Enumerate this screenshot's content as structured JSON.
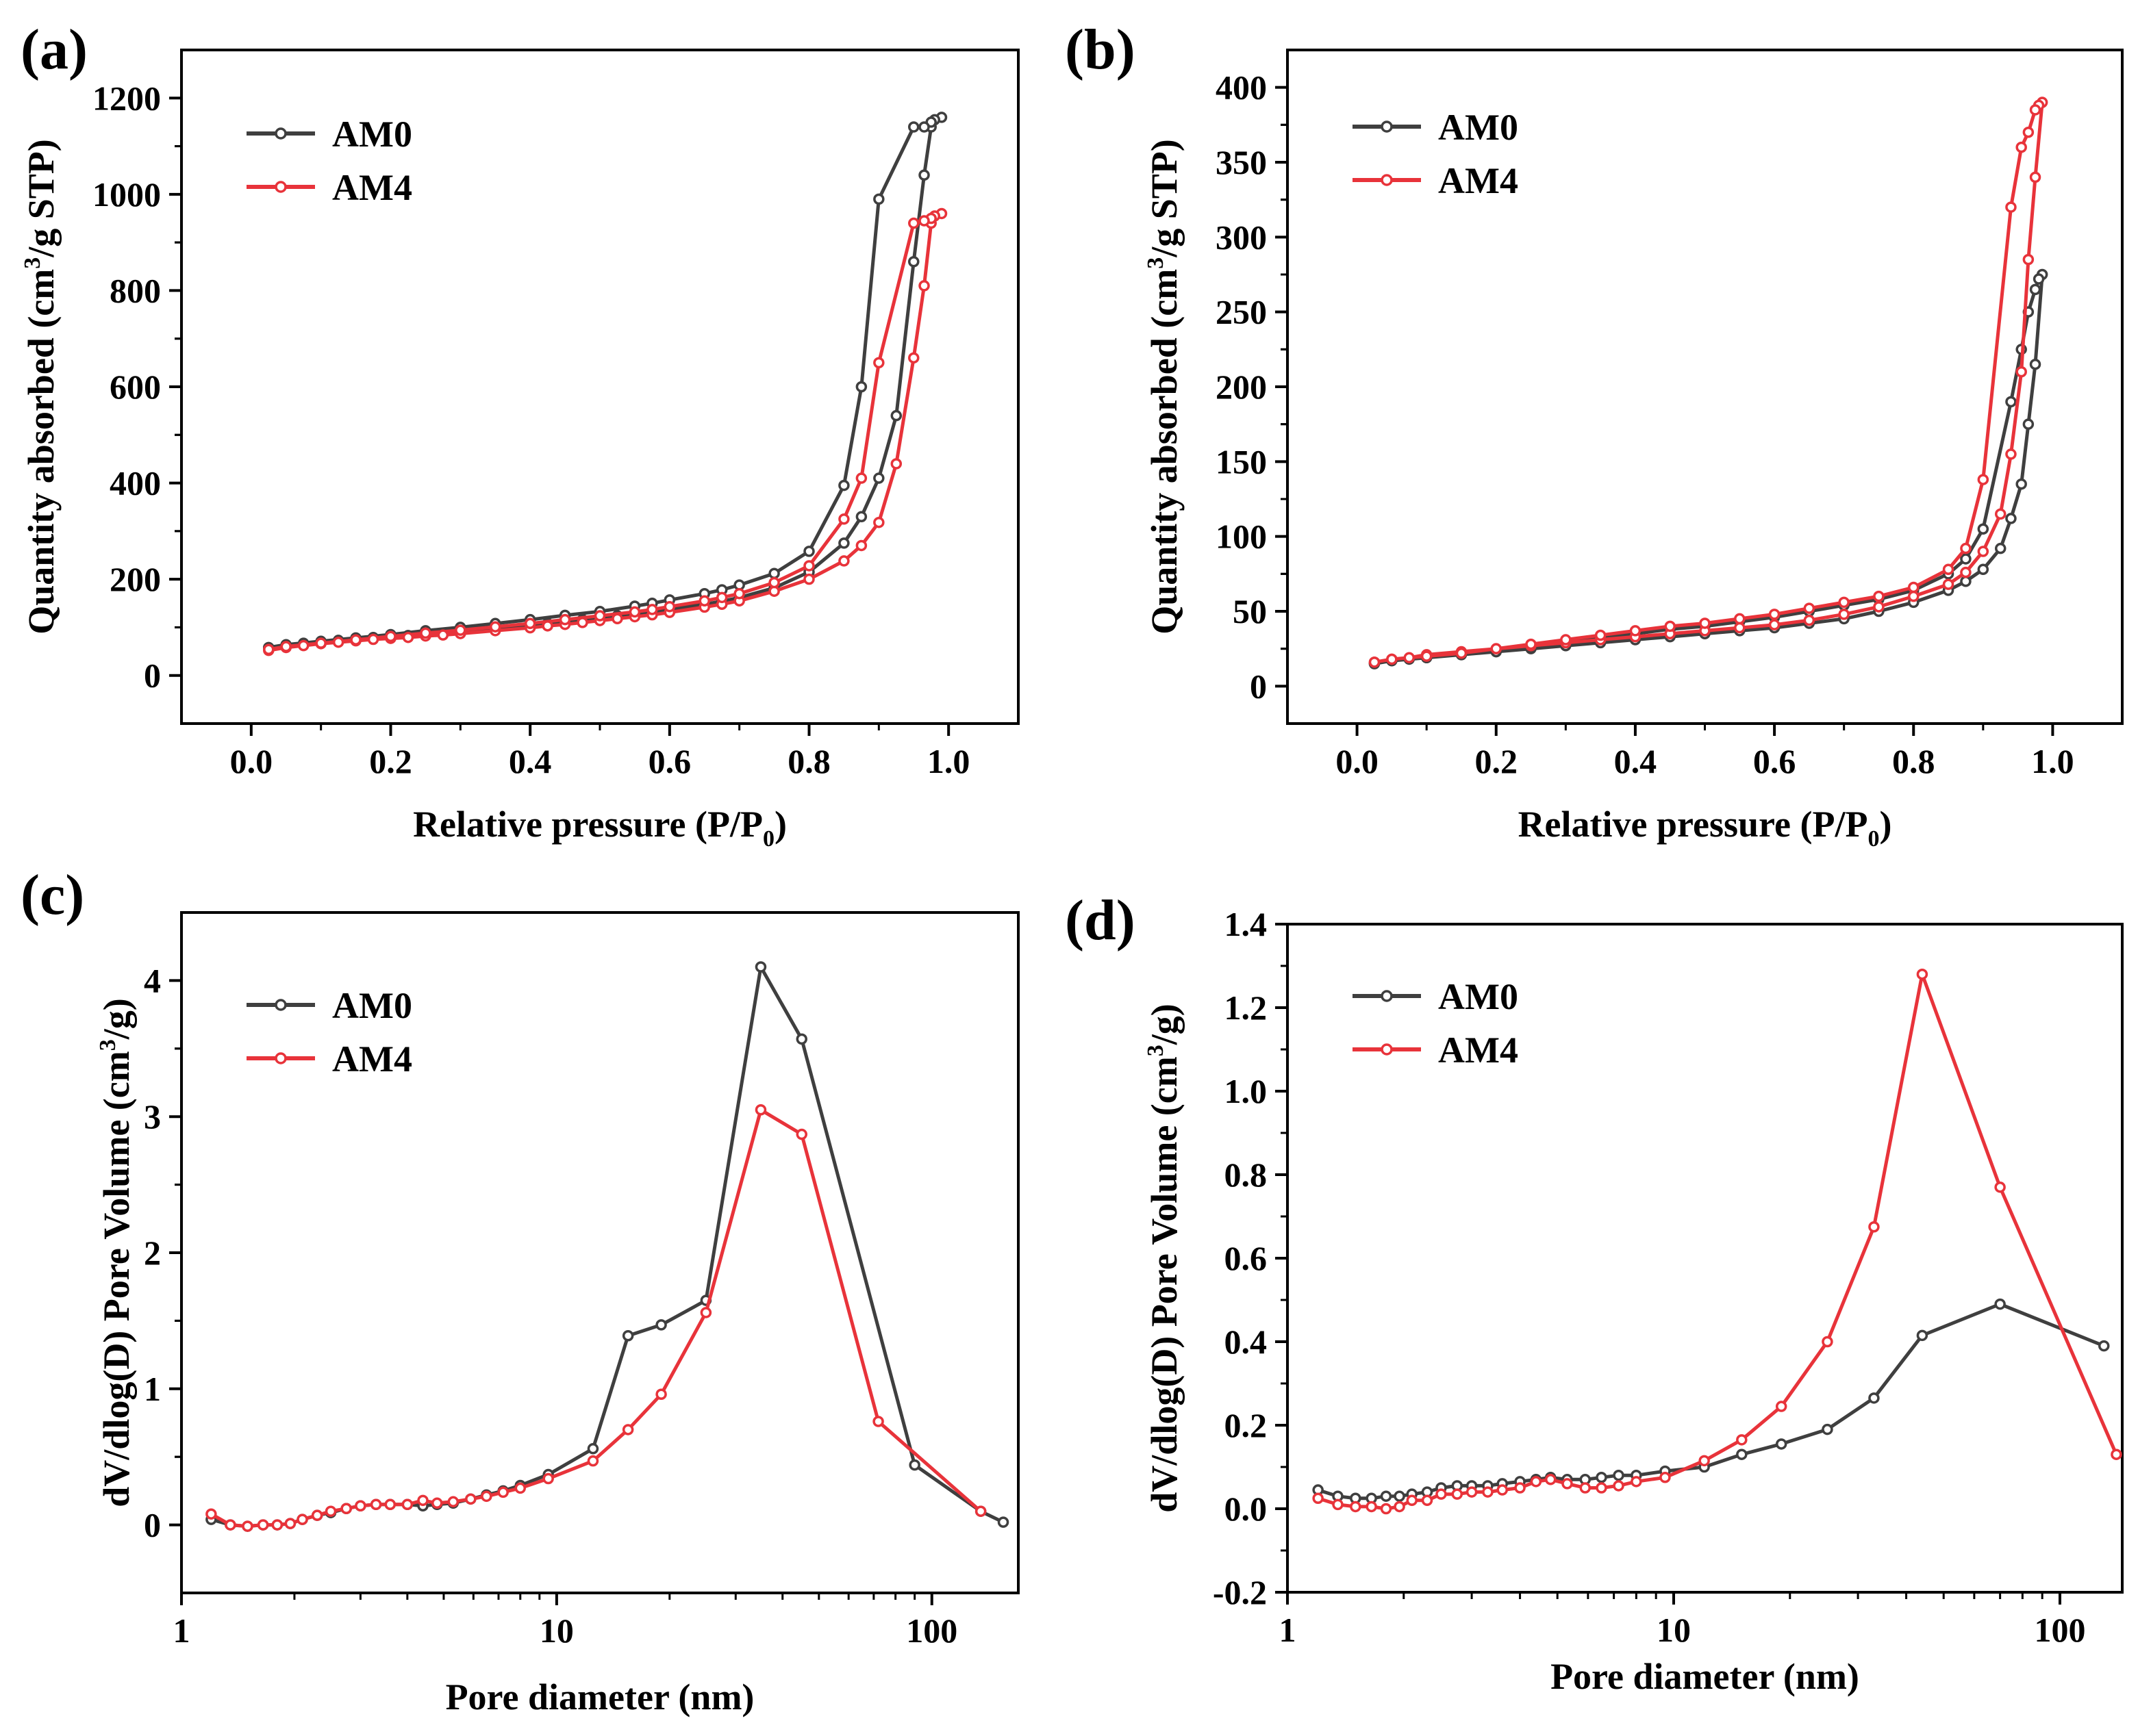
{
  "chart_data": [
    {
      "panel": "(a)",
      "type": "line",
      "xlabel": "Relative pressure (P/P0)",
      "xlabel_main": "Relative pressure (P/P",
      "xlabel_sub": "0",
      "xlabel_end": ")",
      "ylabel": "Quantity absorbed (cm3/g STP)",
      "ylabel_pre": "Quantity absorbed (cm",
      "ylabel_sup": "3",
      "ylabel_post": "/g STP)",
      "xlim": [
        -0.1,
        1.1
      ],
      "ylim": [
        -100,
        1300
      ],
      "xscale": "linear",
      "xticks": [
        0.0,
        0.2,
        0.4,
        0.6,
        0.8,
        1.0
      ],
      "xtick_labels": [
        "0.0",
        "0.2",
        "0.4",
        "0.6",
        "0.8",
        "1.0"
      ],
      "yticks": [
        0,
        200,
        400,
        600,
        800,
        1000,
        1200
      ],
      "ytick_labels": [
        "0",
        "200",
        "400",
        "600",
        "800",
        "1000",
        "1200"
      ],
      "legend_position": "top-left",
      "series": [
        {
          "name": "AM0",
          "color": "#3f3f3f",
          "x": [
            0.025,
            0.05,
            0.075,
            0.1,
            0.125,
            0.15,
            0.175,
            0.2,
            0.225,
            0.25,
            0.275,
            0.3,
            0.35,
            0.4,
            0.425,
            0.45,
            0.475,
            0.5,
            0.525,
            0.55,
            0.575,
            0.6,
            0.65,
            0.675,
            0.7,
            0.75,
            0.8,
            0.85,
            0.875,
            0.9,
            0.925,
            0.95,
            0.965,
            0.975,
            0.99,
            0.98,
            0.975,
            0.965,
            0.95,
            0.9,
            0.875,
            0.85,
            0.8,
            0.75,
            0.7,
            0.675,
            0.65,
            0.6,
            0.575,
            0.55,
            0.5,
            0.45,
            0.4,
            0.35,
            0.3,
            0.25,
            0.2,
            0.15,
            0.1,
            0.05,
            0.025
          ],
          "y": [
            58,
            63,
            67,
            70,
            73,
            76,
            79,
            81,
            83,
            86,
            88,
            91,
            97,
            104,
            108,
            112,
            116,
            120,
            124,
            128,
            132,
            137,
            148,
            154,
            162,
            182,
            215,
            275,
            330,
            410,
            540,
            860,
            1040,
            1140,
            1160,
            1155,
            1150,
            1140,
            1140,
            990,
            600,
            395,
            258,
            212,
            188,
            178,
            170,
            157,
            150,
            144,
            133,
            125,
            116,
            108,
            100,
            93,
            85,
            78,
            71,
            64,
            58
          ]
        },
        {
          "name": "AM4",
          "color": "#e8333a",
          "x": [
            0.025,
            0.05,
            0.075,
            0.1,
            0.125,
            0.15,
            0.175,
            0.2,
            0.225,
            0.25,
            0.275,
            0.3,
            0.35,
            0.4,
            0.425,
            0.45,
            0.475,
            0.5,
            0.525,
            0.55,
            0.575,
            0.6,
            0.65,
            0.675,
            0.7,
            0.75,
            0.8,
            0.85,
            0.875,
            0.9,
            0.925,
            0.95,
            0.965,
            0.975,
            0.99,
            0.98,
            0.975,
            0.965,
            0.95,
            0.9,
            0.875,
            0.85,
            0.8,
            0.75,
            0.7,
            0.675,
            0.65,
            0.6,
            0.575,
            0.55,
            0.5,
            0.45,
            0.4,
            0.35,
            0.3,
            0.25,
            0.2,
            0.15,
            0.1,
            0.05,
            0.025
          ],
          "y": [
            52,
            58,
            62,
            66,
            69,
            72,
            75,
            77,
            79,
            82,
            84,
            87,
            93,
            99,
            103,
            106,
            110,
            114,
            118,
            122,
            126,
            131,
            142,
            148,
            155,
            175,
            200,
            238,
            270,
            318,
            440,
            660,
            810,
            940,
            960,
            955,
            950,
            945,
            940,
            650,
            410,
            325,
            228,
            193,
            170,
            162,
            155,
            143,
            137,
            132,
            124,
            116,
            108,
            101,
            94,
            88,
            81,
            74,
            67,
            60,
            54
          ]
        }
      ]
    },
    {
      "panel": "(b)",
      "type": "line",
      "xlabel": "Relative pressure (P/P0)",
      "xlabel_main": "Relative pressure (P/P",
      "xlabel_sub": "0",
      "xlabel_end": ")",
      "ylabel": "Quantity absorbed (cm3/g STP)",
      "ylabel_pre": "Quantity absorbed (cm",
      "ylabel_sup": "3",
      "ylabel_post": "/g STP)",
      "xlim": [
        -0.1,
        1.1
      ],
      "ylim": [
        -25,
        425
      ],
      "xscale": "linear",
      "xticks": [
        0.0,
        0.2,
        0.4,
        0.6,
        0.8,
        1.0
      ],
      "xtick_labels": [
        "0.0",
        "0.2",
        "0.4",
        "0.6",
        "0.8",
        "1.0"
      ],
      "yticks": [
        0,
        50,
        100,
        150,
        200,
        250,
        300,
        350,
        400
      ],
      "ytick_labels": [
        "0",
        "50",
        "100",
        "150",
        "200",
        "250",
        "300",
        "350",
        "400"
      ],
      "legend_position": "top-left",
      "series": [
        {
          "name": "AM0",
          "color": "#3f3f3f",
          "x": [
            0.025,
            0.05,
            0.075,
            0.1,
            0.15,
            0.2,
            0.25,
            0.3,
            0.35,
            0.4,
            0.45,
            0.5,
            0.55,
            0.6,
            0.65,
            0.7,
            0.75,
            0.8,
            0.85,
            0.875,
            0.9,
            0.925,
            0.94,
            0.955,
            0.965,
            0.975,
            0.985,
            0.98,
            0.975,
            0.965,
            0.955,
            0.94,
            0.9,
            0.875,
            0.85,
            0.8,
            0.75,
            0.7,
            0.65,
            0.6,
            0.55,
            0.5,
            0.45,
            0.4,
            0.35,
            0.3,
            0.25,
            0.2,
            0.15,
            0.1,
            0.05,
            0.025
          ],
          "y": [
            15,
            17,
            18,
            19,
            21,
            23,
            25,
            27,
            29,
            31,
            33,
            35,
            37,
            39,
            42,
            45,
            50,
            56,
            64,
            70,
            78,
            92,
            112,
            135,
            175,
            215,
            275,
            272,
            265,
            250,
            225,
            190,
            105,
            85,
            75,
            64,
            58,
            54,
            50,
            46,
            43,
            40,
            38,
            35,
            32,
            29,
            26,
            23,
            21,
            19,
            17,
            15
          ]
        },
        {
          "name": "AM4",
          "color": "#e8333a",
          "x": [
            0.025,
            0.05,
            0.075,
            0.1,
            0.15,
            0.2,
            0.25,
            0.3,
            0.35,
            0.4,
            0.45,
            0.5,
            0.55,
            0.6,
            0.65,
            0.7,
            0.75,
            0.8,
            0.85,
            0.875,
            0.9,
            0.925,
            0.94,
            0.955,
            0.965,
            0.975,
            0.985,
            0.98,
            0.975,
            0.965,
            0.955,
            0.94,
            0.9,
            0.875,
            0.85,
            0.8,
            0.75,
            0.7,
            0.65,
            0.6,
            0.55,
            0.5,
            0.45,
            0.4,
            0.35,
            0.3,
            0.25,
            0.2,
            0.15,
            0.1,
            0.05,
            0.025
          ],
          "y": [
            16,
            18,
            19,
            21,
            23,
            25,
            27,
            29,
            31,
            33,
            35,
            37,
            39,
            41,
            44,
            48,
            53,
            60,
            68,
            76,
            90,
            115,
            155,
            210,
            285,
            340,
            390,
            388,
            385,
            370,
            360,
            320,
            138,
            92,
            78,
            66,
            60,
            56,
            52,
            48,
            45,
            42,
            40,
            37,
            34,
            31,
            28,
            25,
            22,
            20,
            18,
            16
          ]
        }
      ]
    },
    {
      "panel": "(c)",
      "type": "line",
      "xlabel": "Pore diameter (nm)",
      "ylabel": "dV/dlog(D) Pore Volume (cm3/g)",
      "ylabel_pre": "dV/dlog(D) Pore Volume (cm",
      "ylabel_sup": "3",
      "ylabel_post": "/g)",
      "xlim": [
        1,
        170
      ],
      "ylim": [
        -0.5,
        4.5
      ],
      "xscale": "log",
      "xticks": [
        1,
        10,
        100
      ],
      "xtick_labels": [
        "1",
        "10",
        "100"
      ],
      "yticks": [
        0,
        1,
        2,
        3,
        4
      ],
      "ytick_labels": [
        "0",
        "1",
        "2",
        "3",
        "4"
      ],
      "legend_position": "top-left",
      "series": [
        {
          "name": "AM0",
          "color": "#3f3f3f",
          "x": [
            1.2,
            1.35,
            1.5,
            1.65,
            1.8,
            1.95,
            2.1,
            2.3,
            2.5,
            2.75,
            3.0,
            3.3,
            3.6,
            4.0,
            4.4,
            4.8,
            5.3,
            5.9,
            6.5,
            7.2,
            8.0,
            9.5,
            12.5,
            15.5,
            19,
            25,
            35,
            45,
            90,
            135,
            155
          ],
          "y": [
            0.04,
            0.0,
            -0.01,
            0.0,
            0.0,
            0.01,
            0.04,
            0.07,
            0.09,
            0.12,
            0.14,
            0.15,
            0.15,
            0.15,
            0.14,
            0.15,
            0.16,
            0.19,
            0.22,
            0.25,
            0.29,
            0.37,
            0.56,
            1.39,
            1.47,
            1.65,
            4.1,
            3.57,
            0.44,
            0.1,
            0.02
          ]
        },
        {
          "name": "AM4",
          "color": "#e8333a",
          "x": [
            1.2,
            1.35,
            1.5,
            1.65,
            1.8,
            1.95,
            2.1,
            2.3,
            2.5,
            2.75,
            3.0,
            3.3,
            3.6,
            4.0,
            4.4,
            4.8,
            5.3,
            5.9,
            6.5,
            7.2,
            8.0,
            9.5,
            12.5,
            15.5,
            19,
            25,
            35,
            45,
            72,
            135
          ],
          "y": [
            0.08,
            0.0,
            -0.01,
            0.0,
            0.0,
            0.01,
            0.04,
            0.07,
            0.1,
            0.12,
            0.14,
            0.15,
            0.15,
            0.15,
            0.18,
            0.16,
            0.17,
            0.19,
            0.21,
            0.24,
            0.27,
            0.34,
            0.47,
            0.7,
            0.96,
            1.56,
            3.05,
            2.87,
            0.76,
            0.1
          ]
        }
      ]
    },
    {
      "panel": "(d)",
      "type": "line",
      "xlabel": "Pore diameter (nm)",
      "ylabel": "dV/dlog(D) Pore Volume (cm3/g)",
      "ylabel_pre": "dV/dlog(D) Pore Volume (cm",
      "ylabel_sup": "3",
      "ylabel_post": "/g)",
      "xlim": [
        1,
        145
      ],
      "ylim": [
        -0.2,
        1.4
      ],
      "xscale": "log",
      "xticks": [
        1,
        10,
        100
      ],
      "xtick_labels": [
        "1",
        "10",
        "100"
      ],
      "yticks": [
        -0.2,
        0.0,
        0.2,
        0.4,
        0.6,
        0.8,
        1.0,
        1.2,
        1.4
      ],
      "ytick_labels": [
        "-0.2",
        "0.0",
        "0.2",
        "0.4",
        "0.6",
        "0.8",
        "1.0",
        "1.2",
        "1.4"
      ],
      "legend_position": "top-left",
      "series": [
        {
          "name": "AM0",
          "color": "#3f3f3f",
          "x": [
            1.2,
            1.35,
            1.5,
            1.65,
            1.8,
            1.95,
            2.1,
            2.3,
            2.5,
            2.75,
            3.0,
            3.3,
            3.6,
            4.0,
            4.4,
            4.8,
            5.3,
            5.9,
            6.5,
            7.2,
            8.0,
            9.5,
            12,
            15,
            19,
            25,
            33,
            44,
            70,
            130
          ],
          "y": [
            0.045,
            0.03,
            0.025,
            0.025,
            0.03,
            0.03,
            0.035,
            0.04,
            0.05,
            0.055,
            0.055,
            0.055,
            0.06,
            0.065,
            0.07,
            0.075,
            0.07,
            0.07,
            0.075,
            0.08,
            0.08,
            0.09,
            0.1,
            0.13,
            0.155,
            0.19,
            0.265,
            0.415,
            0.49,
            0.39
          ]
        },
        {
          "name": "AM4",
          "color": "#e8333a",
          "x": [
            1.2,
            1.35,
            1.5,
            1.65,
            1.8,
            1.95,
            2.1,
            2.3,
            2.5,
            2.75,
            3.0,
            3.3,
            3.6,
            4.0,
            4.4,
            4.8,
            5.3,
            5.9,
            6.5,
            7.2,
            8.0,
            9.5,
            12,
            15,
            19,
            25,
            33,
            44,
            70,
            140
          ],
          "y": [
            0.025,
            0.01,
            0.005,
            0.005,
            0.0,
            0.005,
            0.02,
            0.02,
            0.035,
            0.035,
            0.04,
            0.04,
            0.045,
            0.05,
            0.065,
            0.07,
            0.06,
            0.05,
            0.05,
            0.055,
            0.065,
            0.075,
            0.115,
            0.165,
            0.245,
            0.4,
            0.675,
            1.28,
            0.77,
            0.13
          ]
        }
      ]
    }
  ]
}
